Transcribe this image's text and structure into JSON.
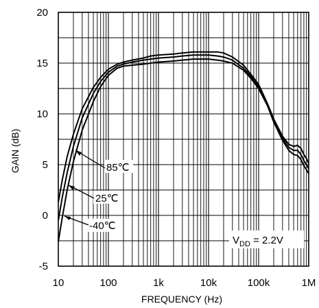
{
  "chart_data": {
    "type": "line",
    "xlabel": "FREQUENCY (Hz)",
    "ylabel": "GAIN (dB)",
    "x_scale": "log",
    "xlim": [
      10,
      1000000
    ],
    "ylim": [
      -5,
      20
    ],
    "grid": true,
    "x_ticks": [
      {
        "value": 10,
        "label": "10"
      },
      {
        "value": 100,
        "label": "100"
      },
      {
        "value": 1000,
        "label": "1k"
      },
      {
        "value": 10000,
        "label": "10k"
      },
      {
        "value": 100000,
        "label": "100k"
      },
      {
        "value": 1000000,
        "label": "1M"
      }
    ],
    "y_ticks": [
      {
        "value": -5,
        "label": "-5"
      },
      {
        "value": 0,
        "label": "0"
      },
      {
        "value": 5,
        "label": "5"
      },
      {
        "value": 10,
        "label": "10"
      },
      {
        "value": 15,
        "label": "15"
      },
      {
        "value": 20,
        "label": "20"
      }
    ],
    "series": [
      {
        "name": "85°C",
        "points": [
          [
            10,
            1.3
          ],
          [
            12,
            3.5
          ],
          [
            15,
            5.8
          ],
          [
            20,
            8.0
          ],
          [
            30,
            10.5
          ],
          [
            50,
            12.6
          ],
          [
            70,
            13.6
          ],
          [
            100,
            14.4
          ],
          [
            150,
            14.9
          ],
          [
            200,
            15.1
          ],
          [
            300,
            15.3
          ],
          [
            500,
            15.5
          ],
          [
            700,
            15.7
          ],
          [
            1000,
            15.8
          ],
          [
            2000,
            15.9
          ],
          [
            3000,
            16.0
          ],
          [
            5000,
            16.1
          ],
          [
            8000,
            16.1
          ],
          [
            10000,
            16.1
          ],
          [
            15000,
            16.1
          ],
          [
            20000,
            16.0
          ],
          [
            30000,
            15.6
          ],
          [
            50000,
            14.8
          ],
          [
            70000,
            13.9
          ],
          [
            100000,
            12.9
          ],
          [
            150000,
            11.0
          ],
          [
            200000,
            9.5
          ],
          [
            300000,
            7.8
          ],
          [
            400000,
            7.0
          ],
          [
            500000,
            6.8
          ],
          [
            600000,
            6.9
          ],
          [
            700000,
            6.6
          ],
          [
            800000,
            6.0
          ],
          [
            900000,
            5.6
          ],
          [
            1000000,
            5.1
          ]
        ]
      },
      {
        "name": "25°C",
        "points": [
          [
            10,
            -0.5
          ],
          [
            12,
            1.8
          ],
          [
            15,
            4.2
          ],
          [
            20,
            6.8
          ],
          [
            30,
            9.6
          ],
          [
            50,
            12.0
          ],
          [
            70,
            13.2
          ],
          [
            100,
            14.1
          ],
          [
            150,
            14.7
          ],
          [
            200,
            14.9
          ],
          [
            300,
            15.1
          ],
          [
            500,
            15.3
          ],
          [
            700,
            15.4
          ],
          [
            1000,
            15.5
          ],
          [
            2000,
            15.6
          ],
          [
            3000,
            15.7
          ],
          [
            5000,
            15.8
          ],
          [
            8000,
            15.8
          ],
          [
            10000,
            15.8
          ],
          [
            15000,
            15.7
          ],
          [
            20000,
            15.6
          ],
          [
            30000,
            15.3
          ],
          [
            50000,
            14.5
          ],
          [
            70000,
            13.7
          ],
          [
            100000,
            12.7
          ],
          [
            150000,
            10.9
          ],
          [
            200000,
            9.4
          ],
          [
            300000,
            7.6
          ],
          [
            400000,
            6.7
          ],
          [
            500000,
            6.4
          ],
          [
            600000,
            6.4
          ],
          [
            700000,
            6.0
          ],
          [
            800000,
            5.4
          ],
          [
            900000,
            5.0
          ],
          [
            1000000,
            4.6
          ]
        ]
      },
      {
        "name": "-40°C",
        "points": [
          [
            10,
            -2.6
          ],
          [
            12,
            -0.2
          ],
          [
            15,
            2.5
          ],
          [
            20,
            5.3
          ],
          [
            30,
            8.4
          ],
          [
            50,
            11.2
          ],
          [
            70,
            12.7
          ],
          [
            100,
            13.8
          ],
          [
            150,
            14.5
          ],
          [
            200,
            14.7
          ],
          [
            300,
            14.8
          ],
          [
            500,
            14.9
          ],
          [
            700,
            15.0
          ],
          [
            1000,
            15.1
          ],
          [
            2000,
            15.2
          ],
          [
            3000,
            15.3
          ],
          [
            5000,
            15.4
          ],
          [
            8000,
            15.4
          ],
          [
            10000,
            15.4
          ],
          [
            15000,
            15.3
          ],
          [
            20000,
            15.2
          ],
          [
            30000,
            15.0
          ],
          [
            50000,
            14.3
          ],
          [
            70000,
            13.5
          ],
          [
            100000,
            12.5
          ],
          [
            150000,
            10.8
          ],
          [
            200000,
            9.2
          ],
          [
            300000,
            7.4
          ],
          [
            400000,
            6.4
          ],
          [
            500000,
            6.0
          ],
          [
            600000,
            5.9
          ],
          [
            700000,
            5.5
          ],
          [
            800000,
            4.9
          ],
          [
            900000,
            4.5
          ],
          [
            1000000,
            4.1
          ]
        ]
      }
    ],
    "annotations": {
      "label_85": "85℃",
      "label_25": "25℃",
      "label_m40": "-40℃",
      "vdd_prefix": "V",
      "vdd_sub": "DD",
      "vdd_suffix": " = 2.2V"
    }
  }
}
